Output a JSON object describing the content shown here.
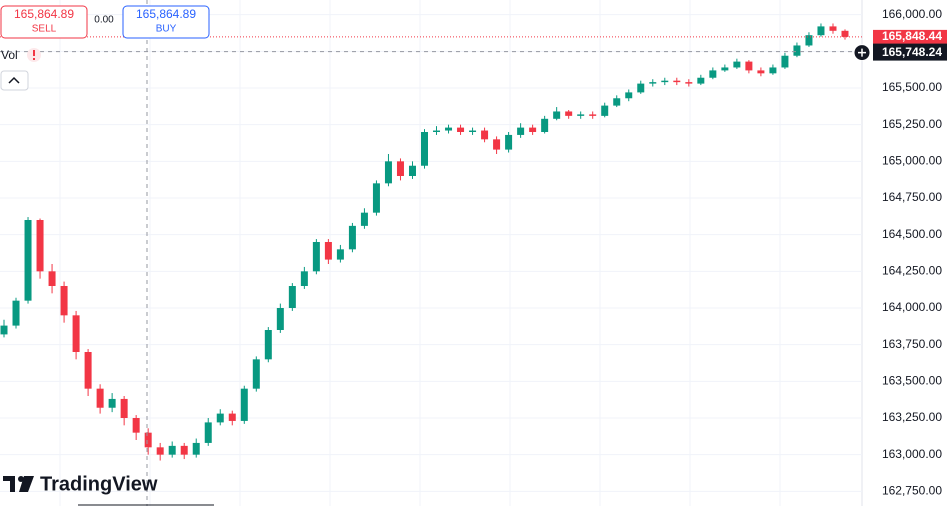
{
  "trade_panel": {
    "sell_price": "165,864.89",
    "sell_label": "SELL",
    "spread": "0.00",
    "buy_price": "165,864.89",
    "buy_label": "BUY"
  },
  "indicator_label": "Vol",
  "logo": "TradingView",
  "chart_data": {
    "type": "candlestick",
    "up_color": "#089981",
    "down_color": "#f23645",
    "grid": true,
    "ylim": [
      162650,
      166100
    ],
    "yticks": [
      {
        "value": 162750,
        "label": "162,750.00"
      },
      {
        "value": 163000,
        "label": "163,000.00"
      },
      {
        "value": 163250,
        "label": "163,250.00"
      },
      {
        "value": 163500,
        "label": "163,500.00"
      },
      {
        "value": 163750,
        "label": "163,750.00"
      },
      {
        "value": 164000,
        "label": "164,000.00"
      },
      {
        "value": 164250,
        "label": "164,250.00"
      },
      {
        "value": 164500,
        "label": "164,500.00"
      },
      {
        "value": 164750,
        "label": "164,750.00"
      },
      {
        "value": 165000,
        "label": "165,000.00"
      },
      {
        "value": 165250,
        "label": "165,250.00"
      },
      {
        "value": 165500,
        "label": "165,500.00"
      },
      {
        "value": 165750,
        "label": "165,750.00"
      },
      {
        "value": 166000,
        "label": "166,000.00"
      }
    ],
    "last_price": {
      "value": 165848.44,
      "label": "165,848.44"
    },
    "crosshair_price": {
      "value": 165748.24,
      "label": "165,748.24"
    },
    "open": [
      163820,
      163880,
      164050,
      164600,
      164250,
      164150,
      163950,
      163700,
      163450,
      163320,
      163380,
      163250,
      163150,
      163050,
      163000,
      163060,
      163000,
      163080,
      163220,
      163280,
      163230,
      163450,
      163650,
      163850,
      164000,
      164150,
      164250,
      164450,
      164330,
      164400,
      164560,
      164650,
      164850,
      165000,
      164900,
      164970,
      165200,
      165210,
      165230,
      165200,
      165210,
      165150,
      165080,
      165180,
      165230,
      165200,
      165290,
      165340,
      165310,
      165320,
      165310,
      165380,
      165430,
      165470,
      165530,
      165540,
      165550,
      165540,
      165530,
      165570,
      165620,
      165640,
      165680,
      165620,
      165600,
      165640,
      165720,
      165790,
      165860,
      165920,
      165890
    ],
    "high": [
      163920,
      164070,
      164620,
      164610,
      164300,
      164180,
      163980,
      163720,
      163480,
      163420,
      163400,
      163270,
      163180,
      163080,
      163090,
      163080,
      163110,
      163250,
      163310,
      163300,
      163470,
      163670,
      163870,
      164030,
      164170,
      164280,
      164470,
      164470,
      164430,
      164580,
      164680,
      164870,
      165050,
      165020,
      165000,
      165220,
      165240,
      165250,
      165250,
      165230,
      165230,
      165170,
      165200,
      165260,
      165250,
      165310,
      165370,
      165350,
      165340,
      165340,
      165400,
      165450,
      165490,
      165550,
      165560,
      165570,
      165570,
      165560,
      165590,
      165640,
      165660,
      165700,
      165690,
      165640,
      165660,
      165740,
      165810,
      165880,
      165940,
      165940,
      165900
    ],
    "low": [
      163800,
      163860,
      164030,
      164200,
      164100,
      163900,
      163650,
      163400,
      163280,
      163290,
      163200,
      163100,
      163000,
      162960,
      162980,
      162970,
      162980,
      163060,
      163200,
      163200,
      163210,
      163430,
      163630,
      163830,
      163980,
      164130,
      164230,
      164300,
      164310,
      164380,
      164540,
      164630,
      164830,
      164870,
      164880,
      164950,
      165180,
      165190,
      165180,
      165180,
      165130,
      165050,
      165060,
      165160,
      165180,
      165190,
      165280,
      165290,
      165290,
      165290,
      165300,
      165370,
      165410,
      165460,
      165510,
      165520,
      165520,
      165510,
      165520,
      165560,
      165610,
      165630,
      165600,
      165580,
      165590,
      165630,
      165710,
      165780,
      165850,
      165870,
      165830
    ],
    "close": [
      163880,
      164050,
      164600,
      164250,
      164150,
      163950,
      163700,
      163450,
      163320,
      163380,
      163250,
      163150,
      163050,
      163000,
      163060,
      163000,
      163080,
      163220,
      163280,
      163230,
      163450,
      163650,
      163850,
      164000,
      164150,
      164250,
      164450,
      164330,
      164400,
      164560,
      164650,
      164850,
      165000,
      164900,
      164970,
      165200,
      165210,
      165230,
      165200,
      165210,
      165150,
      165080,
      165180,
      165230,
      165200,
      165290,
      165340,
      165310,
      165320,
      165310,
      165380,
      165430,
      165470,
      165530,
      165540,
      165550,
      165540,
      165530,
      165570,
      165620,
      165640,
      165680,
      165620,
      165600,
      165640,
      165720,
      165790,
      165860,
      165920,
      165890,
      165848.44
    ]
  }
}
